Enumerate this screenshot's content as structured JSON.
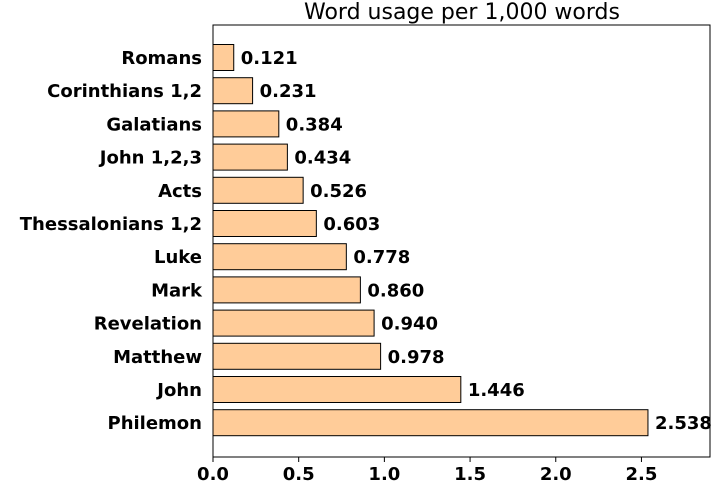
{
  "chart_data": {
    "type": "bar",
    "orientation": "horizontal",
    "title": "Word usage per 1,000 words",
    "xlabel": "",
    "ylabel": "",
    "categories": [
      "Romans",
      "Corinthians 1,2",
      "Galatians",
      "John 1,2,3",
      "Acts",
      "Thessalonians 1,2",
      "Luke",
      "Mark",
      "Revelation",
      "Matthew",
      "John",
      "Philemon"
    ],
    "values": [
      0.121,
      0.231,
      0.384,
      0.434,
      0.526,
      0.603,
      0.778,
      0.86,
      0.94,
      0.978,
      1.446,
      2.538
    ],
    "value_labels": [
      "0.121",
      "0.231",
      "0.384",
      "0.434",
      "0.526",
      "0.603",
      "0.778",
      "0.860",
      "0.940",
      "0.978",
      "1.446",
      "2.538"
    ],
    "xlim": [
      0,
      2.9
    ],
    "xticks": [
      0.0,
      0.5,
      1.0,
      1.5,
      2.0,
      2.5
    ],
    "xtick_labels": [
      "0.0",
      "0.5",
      "1.0",
      "1.5",
      "2.0",
      "2.5"
    ],
    "grid": false,
    "bar_color": "#ffcc99",
    "edge_color": "#000000"
  }
}
